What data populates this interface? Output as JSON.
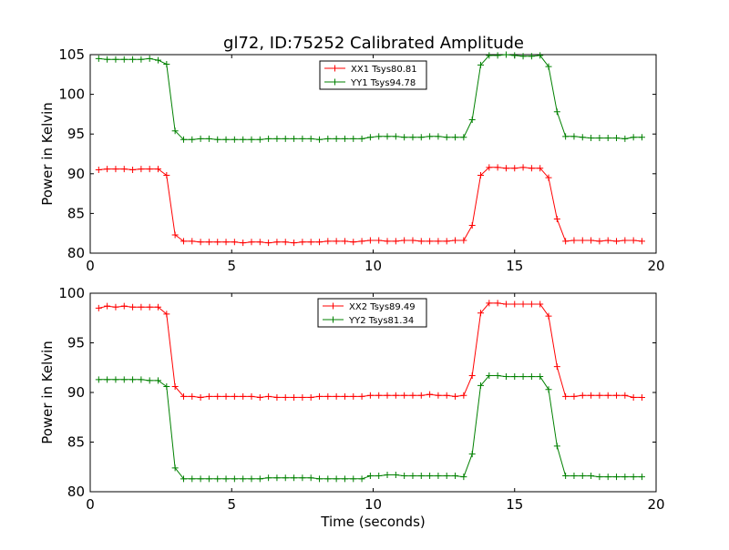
{
  "figure": {
    "title": "gl72, ID:75252 Calibrated Amplitude"
  },
  "chart_data": [
    {
      "type": "line",
      "title": "gl72, ID:75252 Calibrated Amplitude",
      "xlabel": "",
      "ylabel": "Power in Kelvin",
      "xlim": [
        0,
        20
      ],
      "ylim": [
        80,
        105
      ],
      "x_ticks": [
        0,
        5,
        10,
        15,
        20
      ],
      "y_ticks": [
        80,
        85,
        90,
        95,
        100,
        105
      ],
      "grid": false,
      "legend_position": "top-center",
      "x": [
        0.3,
        0.6,
        0.9,
        1.2,
        1.5,
        1.8,
        2.1,
        2.4,
        2.7,
        3.0,
        3.3,
        3.6,
        3.9,
        4.2,
        4.5,
        4.8,
        5.1,
        5.4,
        5.7,
        6.0,
        6.3,
        6.6,
        6.9,
        7.2,
        7.5,
        7.8,
        8.1,
        8.4,
        8.7,
        9.0,
        9.3,
        9.6,
        9.9,
        10.2,
        10.5,
        10.8,
        11.1,
        11.4,
        11.7,
        12.0,
        12.3,
        12.6,
        12.9,
        13.2,
        13.5,
        13.8,
        14.1,
        14.4,
        14.7,
        15.0,
        15.3,
        15.6,
        15.9,
        16.2,
        16.5,
        16.8,
        17.1,
        17.4,
        17.7,
        18.0,
        18.3,
        18.6,
        18.9,
        19.2,
        19.5
      ],
      "series": [
        {
          "name": "XX1 Tsys80.81",
          "color": "#ff0000",
          "values": [
            90.5,
            90.6,
            90.6,
            90.6,
            90.5,
            90.6,
            90.6,
            90.6,
            89.8,
            82.3,
            81.5,
            81.5,
            81.4,
            81.4,
            81.4,
            81.4,
            81.4,
            81.3,
            81.4,
            81.4,
            81.3,
            81.4,
            81.4,
            81.3,
            81.4,
            81.4,
            81.4,
            81.5,
            81.5,
            81.5,
            81.4,
            81.5,
            81.6,
            81.6,
            81.5,
            81.5,
            81.6,
            81.6,
            81.5,
            81.5,
            81.5,
            81.5,
            81.6,
            81.6,
            83.5,
            89.8,
            90.8,
            90.8,
            90.7,
            90.7,
            90.8,
            90.7,
            90.7,
            89.5,
            84.3,
            81.5,
            81.6,
            81.6,
            81.6,
            81.5,
            81.6,
            81.5,
            81.6,
            81.6,
            81.5
          ]
        },
        {
          "name": "YY1 Tsys94.78",
          "color": "#008000",
          "values": [
            104.5,
            104.4,
            104.4,
            104.4,
            104.4,
            104.4,
            104.5,
            104.3,
            103.8,
            95.4,
            94.3,
            94.3,
            94.4,
            94.4,
            94.3,
            94.3,
            94.3,
            94.3,
            94.3,
            94.3,
            94.4,
            94.4,
            94.4,
            94.4,
            94.4,
            94.4,
            94.3,
            94.4,
            94.4,
            94.4,
            94.4,
            94.4,
            94.6,
            94.7,
            94.7,
            94.7,
            94.6,
            94.6,
            94.6,
            94.7,
            94.7,
            94.6,
            94.6,
            94.6,
            96.8,
            103.7,
            104.9,
            104.9,
            105.0,
            104.9,
            104.8,
            104.8,
            104.9,
            103.5,
            97.8,
            94.7,
            94.7,
            94.6,
            94.5,
            94.5,
            94.5,
            94.5,
            94.4,
            94.6,
            94.6
          ]
        }
      ]
    },
    {
      "type": "line",
      "title": "",
      "xlabel": "Time (seconds)",
      "ylabel": "Power in Kelvin",
      "xlim": [
        0,
        20
      ],
      "ylim": [
        80,
        100
      ],
      "x_ticks": [
        0,
        5,
        10,
        15,
        20
      ],
      "y_ticks": [
        80,
        85,
        90,
        95,
        100
      ],
      "grid": false,
      "legend_position": "top-center",
      "x": [
        0.3,
        0.6,
        0.9,
        1.2,
        1.5,
        1.8,
        2.1,
        2.4,
        2.7,
        3.0,
        3.3,
        3.6,
        3.9,
        4.2,
        4.5,
        4.8,
        5.1,
        5.4,
        5.7,
        6.0,
        6.3,
        6.6,
        6.9,
        7.2,
        7.5,
        7.8,
        8.1,
        8.4,
        8.7,
        9.0,
        9.3,
        9.6,
        9.9,
        10.2,
        10.5,
        10.8,
        11.1,
        11.4,
        11.7,
        12.0,
        12.3,
        12.6,
        12.9,
        13.2,
        13.5,
        13.8,
        14.1,
        14.4,
        14.7,
        15.0,
        15.3,
        15.6,
        15.9,
        16.2,
        16.5,
        16.8,
        17.1,
        17.4,
        17.7,
        18.0,
        18.3,
        18.6,
        18.9,
        19.2,
        19.5
      ],
      "series": [
        {
          "name": "XX2 Tsys89.49",
          "color": "#ff0000",
          "values": [
            98.5,
            98.7,
            98.6,
            98.7,
            98.6,
            98.6,
            98.6,
            98.6,
            97.9,
            90.6,
            89.6,
            89.6,
            89.5,
            89.6,
            89.6,
            89.6,
            89.6,
            89.6,
            89.6,
            89.5,
            89.6,
            89.5,
            89.5,
            89.5,
            89.5,
            89.5,
            89.6,
            89.6,
            89.6,
            89.6,
            89.6,
            89.6,
            89.7,
            89.7,
            89.7,
            89.7,
            89.7,
            89.7,
            89.7,
            89.8,
            89.7,
            89.7,
            89.6,
            89.7,
            91.7,
            98.0,
            99.0,
            99.0,
            98.9,
            98.9,
            98.9,
            98.9,
            98.9,
            97.7,
            92.6,
            89.6,
            89.6,
            89.7,
            89.7,
            89.7,
            89.7,
            89.7,
            89.7,
            89.5,
            89.5
          ]
        },
        {
          "name": "YY2 Tsys81.34",
          "color": "#008000",
          "values": [
            91.3,
            91.3,
            91.3,
            91.3,
            91.3,
            91.3,
            91.2,
            91.2,
            90.6,
            82.4,
            81.3,
            81.3,
            81.3,
            81.3,
            81.3,
            81.3,
            81.3,
            81.3,
            81.3,
            81.3,
            81.4,
            81.4,
            81.4,
            81.4,
            81.4,
            81.4,
            81.3,
            81.3,
            81.3,
            81.3,
            81.3,
            81.3,
            81.6,
            81.6,
            81.7,
            81.7,
            81.6,
            81.6,
            81.6,
            81.6,
            81.6,
            81.6,
            81.6,
            81.5,
            83.8,
            90.7,
            91.7,
            91.7,
            91.6,
            91.6,
            91.6,
            91.6,
            91.6,
            90.3,
            84.6,
            81.6,
            81.6,
            81.6,
            81.6,
            81.5,
            81.5,
            81.5,
            81.5,
            81.5,
            81.5
          ]
        }
      ]
    }
  ]
}
